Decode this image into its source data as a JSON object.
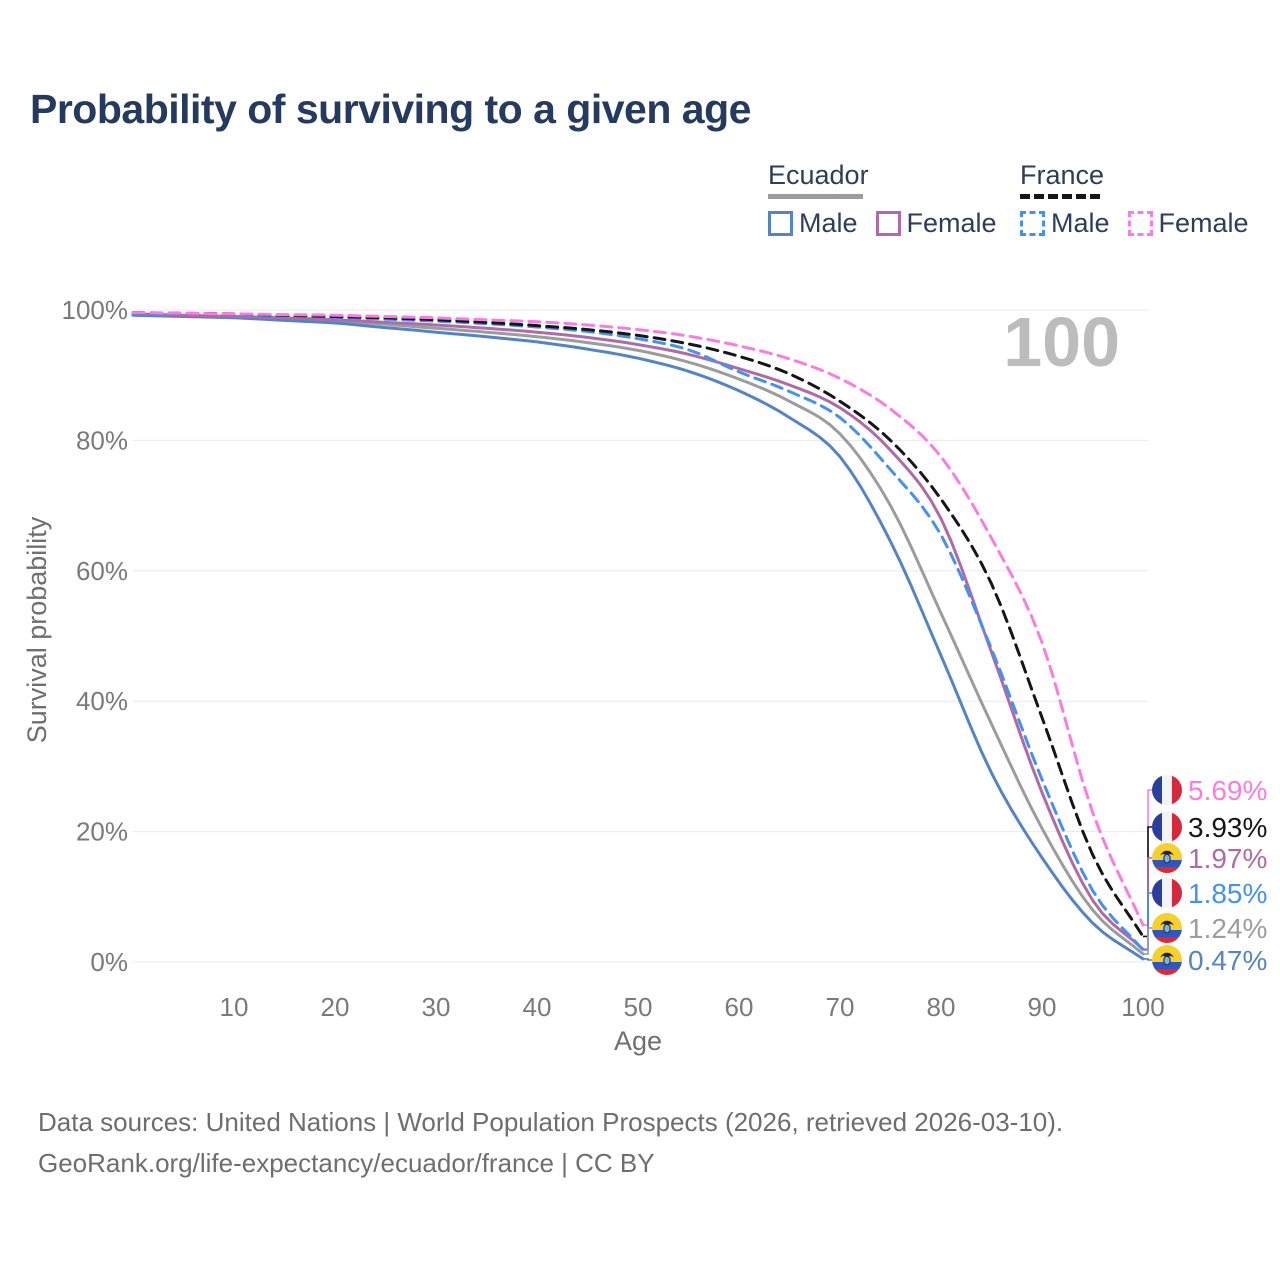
{
  "title": "Probability of surviving to a given age",
  "watermark": "100",
  "legend": {
    "groups": [
      {
        "id": "ecuador",
        "label": "Ecuador",
        "line_style": "solid",
        "line_color": "#9c9c9c",
        "items": [
          {
            "label": "Male",
            "color": "#5484c8",
            "style": "solid"
          },
          {
            "label": "Female",
            "color": "#b06aa8",
            "style": "solid"
          }
        ]
      },
      {
        "id": "france",
        "label": "France",
        "line_style": "dashed",
        "line_color": "#161616",
        "items": [
          {
            "label": "Male",
            "color": "#4490f3",
            "style": "dashed"
          },
          {
            "label": "Female",
            "color": "#fb7ce0",
            "style": "dashed"
          }
        ]
      }
    ]
  },
  "axes": {
    "y_title": "Survival probability",
    "x_title": "Age",
    "y_ticks": [
      {
        "label": "100%",
        "value": 100
      },
      {
        "label": "80%",
        "value": 80
      },
      {
        "label": "60%",
        "value": 60
      },
      {
        "label": "40%",
        "value": 40
      },
      {
        "label": "20%",
        "value": 20
      },
      {
        "label": "0%",
        "value": 0
      }
    ],
    "x_ticks": [
      {
        "label": "10",
        "value": 10
      },
      {
        "label": "20",
        "value": 20
      },
      {
        "label": "30",
        "value": 30
      },
      {
        "label": "40",
        "value": 40
      },
      {
        "label": "50",
        "value": 50
      },
      {
        "label": "60",
        "value": 60
      },
      {
        "label": "70",
        "value": 70
      },
      {
        "label": "80",
        "value": 80
      },
      {
        "label": "90",
        "value": 90
      },
      {
        "label": "100",
        "value": 100
      }
    ]
  },
  "source_line1": "Data sources: United Nations | World Population Prospects (2026, retrieved 2026-03-10).",
  "source_line2": "GeoRank.org/life-expectancy/ecuador/france | CC BY",
  "chart_data": {
    "type": "line",
    "title": "Probability of surviving to a given age",
    "xlabel": "Age",
    "ylabel": "Survival probability",
    "xlim": [
      0,
      100
    ],
    "ylim": [
      0,
      100
    ],
    "grid": "horizontal",
    "legend_position": "top-right",
    "x": [
      0,
      5,
      10,
      15,
      20,
      25,
      30,
      35,
      40,
      45,
      50,
      55,
      60,
      65,
      70,
      75,
      80,
      85,
      90,
      95,
      100
    ],
    "series": [
      {
        "name": "Ecuador Male",
        "country": "Ecuador",
        "sex": "male",
        "color": "#5484c8",
        "dash": false,
        "flag": "ecuador",
        "end_label": "0.47%",
        "values": [
          99.2,
          99.0,
          98.8,
          98.4,
          98.0,
          97.3,
          96.6,
          95.9,
          95.1,
          94.0,
          92.6,
          90.6,
          87.6,
          83.5,
          77.5,
          64.5,
          47.0,
          29.0,
          16.0,
          6.0,
          0.47
        ]
      },
      {
        "name": "Ecuador Female",
        "country": "Ecuador",
        "sex": "female",
        "color": "#b06aa8",
        "dash": false,
        "flag": "ecuador",
        "end_label": "1.97%",
        "values": [
          99.4,
          99.2,
          99.0,
          98.8,
          98.5,
          98.1,
          97.7,
          97.2,
          96.6,
          95.8,
          94.7,
          93.2,
          91.0,
          88.5,
          85.0,
          78.5,
          68.0,
          47.5,
          26.0,
          9.5,
          1.97
        ]
      },
      {
        "name": "Ecuador Both sexes",
        "country": "Ecuador",
        "sex": "both",
        "color": "#9c9c9c",
        "dash": false,
        "flag": "ecuador",
        "end_label": "1.24%",
        "values": [
          99.3,
          99.1,
          98.9,
          98.6,
          98.3,
          97.8,
          97.2,
          96.6,
          95.9,
          95.0,
          93.8,
          92.0,
          89.4,
          86.0,
          81.0,
          70.0,
          53.5,
          36.5,
          20.5,
          8.0,
          1.24
        ]
      },
      {
        "name": "France Male",
        "country": "France",
        "sex": "male",
        "color": "#4490f3",
        "dash": true,
        "flag": "france",
        "end_label": "1.85%",
        "values": [
          99.5,
          99.4,
          99.3,
          99.1,
          98.9,
          98.6,
          98.3,
          97.9,
          97.4,
          96.7,
          95.6,
          93.9,
          90.5,
          87.5,
          83.5,
          75.5,
          65.5,
          48.0,
          28.0,
          11.0,
          1.85
        ]
      },
      {
        "name": "France Female",
        "country": "France",
        "sex": "female",
        "color": "#fb7ce0",
        "dash": true,
        "flag": "france",
        "end_label": "5.69%",
        "values": [
          99.6,
          99.5,
          99.4,
          99.3,
          99.2,
          99.0,
          98.8,
          98.5,
          98.2,
          97.7,
          97.0,
          96.0,
          94.5,
          92.5,
          89.5,
          84.8,
          77.5,
          65.0,
          49.0,
          23.0,
          5.69
        ]
      },
      {
        "name": "France Both sexes",
        "country": "France",
        "sex": "both",
        "color": "#161616",
        "dash": true,
        "flag": "france",
        "end_label": "3.93%",
        "values": [
          99.6,
          99.5,
          99.4,
          99.2,
          99.0,
          98.8,
          98.5,
          98.1,
          97.6,
          97.0,
          96.1,
          94.8,
          92.9,
          90.2,
          86.0,
          80.0,
          71.0,
          58.0,
          37.5,
          16.5,
          3.93
        ]
      }
    ]
  }
}
